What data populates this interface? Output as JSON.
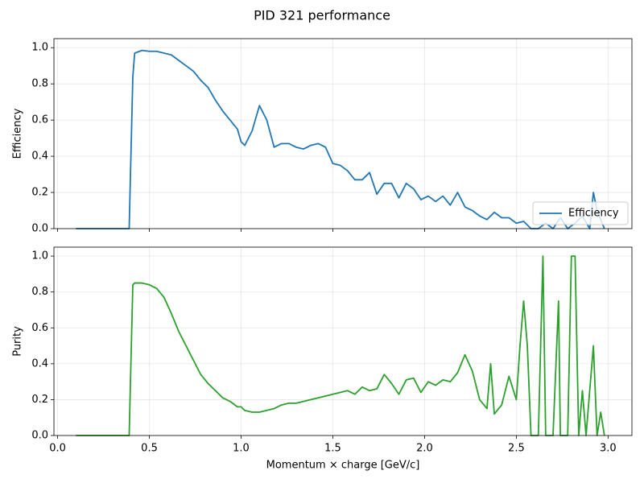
{
  "title": "PID 321 performance",
  "chart_data": [
    {
      "type": "line",
      "ylabel": "Efficiency",
      "x": [
        0.1,
        0.2,
        0.3,
        0.39,
        0.41,
        0.42,
        0.46,
        0.5,
        0.54,
        0.58,
        0.62,
        0.66,
        0.7,
        0.74,
        0.78,
        0.82,
        0.86,
        0.9,
        0.94,
        0.98,
        1.0,
        1.02,
        1.06,
        1.1,
        1.14,
        1.18,
        1.22,
        1.26,
        1.3,
        1.34,
        1.38,
        1.42,
        1.46,
        1.5,
        1.54,
        1.58,
        1.62,
        1.66,
        1.7,
        1.74,
        1.78,
        1.82,
        1.86,
        1.9,
        1.94,
        1.98,
        2.02,
        2.06,
        2.1,
        2.14,
        2.18,
        2.22,
        2.26,
        2.3,
        2.34,
        2.38,
        2.42,
        2.46,
        2.5,
        2.54,
        2.58,
        2.62,
        2.66,
        2.7,
        2.74,
        2.78,
        2.82,
        2.86,
        2.9,
        2.92,
        2.94,
        2.98
      ],
      "series": [
        {
          "name": "Efficiency",
          "color": "#1f77b4",
          "values": [
            0,
            0,
            0,
            0,
            0.84,
            0.97,
            0.985,
            0.98,
            0.98,
            0.97,
            0.96,
            0.93,
            0.9,
            0.87,
            0.82,
            0.78,
            0.71,
            0.65,
            0.6,
            0.55,
            0.48,
            0.46,
            0.54,
            0.68,
            0.6,
            0.45,
            0.47,
            0.47,
            0.45,
            0.44,
            0.46,
            0.47,
            0.45,
            0.36,
            0.35,
            0.32,
            0.27,
            0.27,
            0.31,
            0.19,
            0.25,
            0.25,
            0.17,
            0.25,
            0.22,
            0.16,
            0.18,
            0.15,
            0.18,
            0.13,
            0.2,
            0.12,
            0.1,
            0.07,
            0.05,
            0.09,
            0.06,
            0.06,
            0.03,
            0.04,
            0,
            0,
            0.03,
            0,
            0.06,
            0,
            0.03,
            0.07,
            0,
            0.2,
            0.1,
            0
          ]
        }
      ],
      "xlim": [
        -0.02,
        3.13
      ],
      "ylim": [
        0,
        1.05
      ],
      "xticks": [
        0,
        0.5,
        1,
        1.5,
        2,
        2.5,
        3
      ],
      "yticks": [
        {
          "value": 0,
          "label": "0.0"
        },
        {
          "value": 0.2,
          "label": "0.2"
        },
        {
          "value": 0.4,
          "label": "0.4"
        },
        {
          "value": 0.6,
          "label": "0.6"
        },
        {
          "value": 0.8,
          "label": "0.8"
        },
        {
          "value": 1,
          "label": "1.0"
        }
      ],
      "grid": true,
      "legend": "lower right"
    },
    {
      "type": "line",
      "ylabel": "Purity",
      "xlabel": "Momentum × charge [GeV/c]",
      "color": "#2ca02c",
      "x": [
        0.1,
        0.2,
        0.3,
        0.39,
        0.41,
        0.42,
        0.46,
        0.5,
        0.54,
        0.58,
        0.62,
        0.66,
        0.7,
        0.74,
        0.78,
        0.82,
        0.86,
        0.9,
        0.94,
        0.98,
        1.0,
        1.02,
        1.06,
        1.1,
        1.14,
        1.18,
        1.22,
        1.26,
        1.3,
        1.34,
        1.38,
        1.42,
        1.46,
        1.5,
        1.54,
        1.58,
        1.62,
        1.66,
        1.7,
        1.74,
        1.78,
        1.82,
        1.86,
        1.9,
        1.94,
        1.98,
        2.02,
        2.06,
        2.1,
        2.14,
        2.18,
        2.22,
        2.26,
        2.3,
        2.34,
        2.36,
        2.38,
        2.42,
        2.46,
        2.5,
        2.52,
        2.54,
        2.56,
        2.58,
        2.62,
        2.645,
        2.66,
        2.7,
        2.73,
        2.74,
        2.78,
        2.8,
        2.82,
        2.84,
        2.86,
        2.88,
        2.9,
        2.92,
        2.94,
        2.96,
        2.98
      ],
      "values": [
        0,
        0,
        0,
        0,
        0.84,
        0.85,
        0.85,
        0.84,
        0.82,
        0.77,
        0.68,
        0.58,
        0.5,
        0.42,
        0.34,
        0.29,
        0.25,
        0.21,
        0.19,
        0.16,
        0.16,
        0.14,
        0.13,
        0.13,
        0.14,
        0.15,
        0.17,
        0.18,
        0.18,
        0.19,
        0.2,
        0.21,
        0.22,
        0.23,
        0.24,
        0.25,
        0.23,
        0.27,
        0.25,
        0.26,
        0.34,
        0.29,
        0.23,
        0.31,
        0.32,
        0.24,
        0.3,
        0.28,
        0.31,
        0.3,
        0.35,
        0.45,
        0.36,
        0.2,
        0.15,
        0.4,
        0.12,
        0.17,
        0.33,
        0.2,
        0.5,
        0.75,
        0.5,
        0,
        0,
        1,
        0,
        0,
        0.75,
        0,
        0,
        1,
        1,
        0,
        0.25,
        0,
        0.25,
        0.5,
        0,
        0.13,
        0
      ],
      "xlim": [
        -0.02,
        3.13
      ],
      "ylim": [
        0,
        1.05
      ],
      "xticks": [
        {
          "value": 0,
          "label": "0.0"
        },
        {
          "value": 0.5,
          "label": "0.5"
        },
        {
          "value": 1,
          "label": "1.0"
        },
        {
          "value": 1.5,
          "label": "1.5"
        },
        {
          "value": 2,
          "label": "2.0"
        },
        {
          "value": 2.5,
          "label": "2.5"
        },
        {
          "value": 3,
          "label": "3.0"
        }
      ],
      "yticks": [
        {
          "value": 0,
          "label": "0.0"
        },
        {
          "value": 0.2,
          "label": "0.2"
        },
        {
          "value": 0.4,
          "label": "0.4"
        },
        {
          "value": 0.6,
          "label": "0.6"
        },
        {
          "value": 0.8,
          "label": "0.8"
        },
        {
          "value": 1,
          "label": "1.0"
        }
      ],
      "grid": true
    }
  ]
}
